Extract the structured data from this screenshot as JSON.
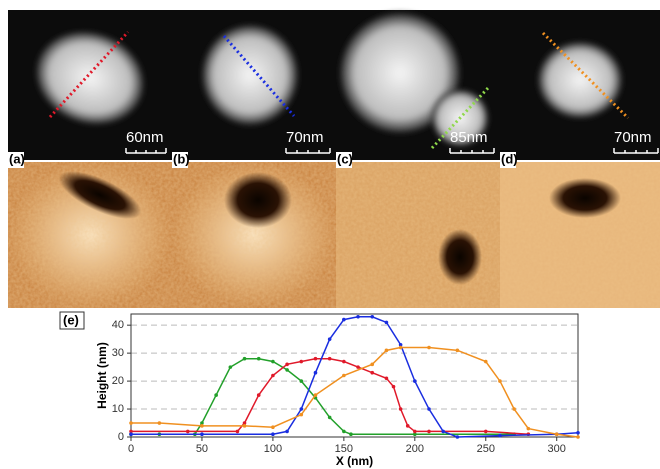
{
  "panels": [
    {
      "label": "(a)",
      "scale": "60nm"
    },
    {
      "label": "(b)",
      "scale": "70nm"
    },
    {
      "label": "(c)",
      "scale": "85nm"
    },
    {
      "label": "(d)",
      "scale": "70nm"
    }
  ],
  "chart_data": {
    "type": "line",
    "label": "(e)",
    "xlabel": "X (nm)",
    "ylabel": "Height (nm)",
    "xlim": [
      0,
      315
    ],
    "ylim": [
      0,
      44
    ],
    "xticks": [
      0,
      50,
      100,
      150,
      200,
      250,
      300
    ],
    "yticks": [
      0,
      10,
      20,
      30,
      40
    ],
    "grid": true,
    "series": [
      {
        "color": "#22a02a",
        "x": [
          0,
          20,
          45,
          50,
          60,
          70,
          80,
          90,
          100,
          110,
          120,
          130,
          140,
          150,
          155,
          200,
          270
        ],
        "values": [
          1,
          1,
          1,
          5,
          15,
          25,
          28,
          28,
          27,
          24,
          20,
          14,
          7,
          2,
          1,
          1,
          1
        ]
      },
      {
        "color": "#e0192a",
        "x": [
          0,
          40,
          75,
          80,
          90,
          100,
          110,
          120,
          130,
          140,
          150,
          160,
          170,
          180,
          185,
          190,
          195,
          200,
          210,
          250,
          280
        ],
        "values": [
          2,
          2,
          2,
          5,
          15,
          22,
          26,
          27,
          28,
          28,
          27,
          25,
          23,
          21,
          18,
          10,
          4,
          2,
          2,
          2,
          1
        ]
      },
      {
        "color": "#1a2ee0",
        "x": [
          0,
          50,
          100,
          110,
          120,
          130,
          140,
          150,
          160,
          170,
          180,
          190,
          200,
          210,
          220,
          230,
          260,
          300,
          315
        ],
        "values": [
          1,
          1,
          1,
          2,
          10,
          23,
          35,
          42,
          43,
          43,
          41,
          33,
          20,
          10,
          2,
          0,
          0.5,
          1,
          1.5
        ]
      },
      {
        "color": "#f09020",
        "x": [
          0,
          20,
          50,
          80,
          100,
          120,
          130,
          150,
          170,
          180,
          190,
          210,
          230,
          250,
          260,
          270,
          280,
          300,
          315
        ],
        "values": [
          5,
          5,
          4,
          4,
          3.5,
          8,
          15,
          22,
          26,
          31,
          32,
          32,
          31,
          27,
          20,
          10,
          3,
          1,
          0
        ]
      }
    ]
  }
}
